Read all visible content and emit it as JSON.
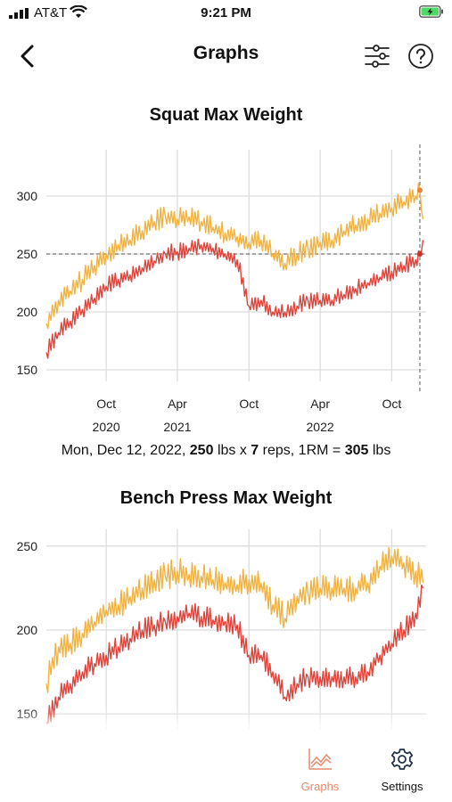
{
  "status_bar": {
    "carrier": "AT&T",
    "time": "9:21 PM"
  },
  "header": {
    "title": "Graphs",
    "back_icon": "chevron-left-icon",
    "filter_icon": "sliders-icon",
    "help_icon": "question-circle-icon"
  },
  "colors": {
    "orange": "#f2b240",
    "red": "#e0433a",
    "active_tab": "#e88a6b",
    "grid": "#dcdcdc"
  },
  "caption": {
    "date": "Mon, Dec 12, 2022,",
    "weight": "250",
    "lbs_x": "lbs x",
    "reps": "7",
    "reps_label": "reps, 1RM =",
    "one_rm": "305",
    "unit": "lbs"
  },
  "chart_data": [
    {
      "type": "line",
      "title": "Squat Max Weight",
      "x_tick_labels": [
        [
          "Oct",
          "2020"
        ],
        [
          "Apr",
          "2021"
        ],
        [
          "Oct",
          ""
        ],
        [
          "Apr",
          "2022"
        ],
        [
          "Oct",
          ""
        ]
      ],
      "x_ticks": [
        "2020-10-01",
        "2021-04-01",
        "2021-10-01",
        "2022-04-01",
        "2022-10-01"
      ],
      "xlim": [
        "2020-05-01",
        "2022-12-28"
      ],
      "ylim": [
        140,
        340
      ],
      "y_ticks": [
        150,
        200,
        250,
        300
      ],
      "grid": true,
      "selected": {
        "date": "2022-12-12",
        "weight": 250,
        "one_rm": 305
      },
      "series": [
        {
          "color": "#f2b240",
          "points": [
            [
              "2020-05-01",
              190
            ],
            [
              "2020-06-01",
              210
            ],
            [
              "2020-07-01",
              218
            ],
            [
              "2020-08-01",
              228
            ],
            [
              "2020-09-01",
              240
            ],
            [
              "2020-10-01",
              250
            ],
            [
              "2020-11-01",
              258
            ],
            [
              "2020-12-01",
              262
            ],
            [
              "2021-01-01",
              270
            ],
            [
              "2021-02-01",
              278
            ],
            [
              "2021-03-01",
              283
            ],
            [
              "2021-04-01",
              280
            ],
            [
              "2021-05-01",
              282
            ],
            [
              "2021-06-01",
              278
            ],
            [
              "2021-07-01",
              273
            ],
            [
              "2021-08-01",
              268
            ],
            [
              "2021-09-01",
              265
            ],
            [
              "2021-10-01",
              260
            ],
            [
              "2021-11-01",
              262
            ],
            [
              "2021-12-01",
              250
            ],
            [
              "2022-01-01",
              242
            ],
            [
              "2022-02-01",
              250
            ],
            [
              "2022-03-01",
              255
            ],
            [
              "2022-04-01",
              260
            ],
            [
              "2022-05-01",
              262
            ],
            [
              "2022-06-01",
              270
            ],
            [
              "2022-07-01",
              275
            ],
            [
              "2022-08-01",
              280
            ],
            [
              "2022-09-01",
              285
            ],
            [
              "2022-10-01",
              290
            ],
            [
              "2022-11-01",
              295
            ],
            [
              "2022-12-01",
              300
            ],
            [
              "2022-12-12",
              305
            ],
            [
              "2022-12-20",
              280
            ]
          ]
        },
        {
          "color": "#e0433a",
          "points": [
            [
              "2020-05-01",
              165
            ],
            [
              "2020-06-01",
              182
            ],
            [
              "2020-07-01",
              192
            ],
            [
              "2020-08-01",
              202
            ],
            [
              "2020-09-01",
              212
            ],
            [
              "2020-10-01",
              222
            ],
            [
              "2020-11-01",
              228
            ],
            [
              "2020-12-01",
              232
            ],
            [
              "2021-01-01",
              238
            ],
            [
              "2021-02-01",
              244
            ],
            [
              "2021-03-01",
              250
            ],
            [
              "2021-04-01",
              252
            ],
            [
              "2021-05-01",
              255
            ],
            [
              "2021-06-01",
              258
            ],
            [
              "2021-07-01",
              255
            ],
            [
              "2021-08-01",
              250
            ],
            [
              "2021-09-01",
              245
            ],
            [
              "2021-10-01",
              205
            ],
            [
              "2021-11-01",
              210
            ],
            [
              "2021-12-01",
              200
            ],
            [
              "2022-01-01",
              200
            ],
            [
              "2022-02-01",
              205
            ],
            [
              "2022-03-01",
              210
            ],
            [
              "2022-04-01",
              210
            ],
            [
              "2022-05-01",
              210
            ],
            [
              "2022-06-01",
              215
            ],
            [
              "2022-07-01",
              220
            ],
            [
              "2022-08-01",
              225
            ],
            [
              "2022-09-01",
              230
            ],
            [
              "2022-10-01",
              235
            ],
            [
              "2022-11-01",
              240
            ],
            [
              "2022-12-01",
              245
            ],
            [
              "2022-12-12",
              250
            ],
            [
              "2022-12-20",
              262
            ]
          ]
        }
      ]
    },
    {
      "type": "line",
      "title": "Bench Press Max Weight",
      "x_ticks": [
        "2020-10-01",
        "2021-04-01",
        "2021-10-01",
        "2022-04-01",
        "2022-10-01"
      ],
      "xlim": [
        "2020-05-01",
        "2022-12-28"
      ],
      "ylim": [
        140,
        260
      ],
      "y_ticks": [
        150,
        200,
        250
      ],
      "grid": true,
      "series": [
        {
          "color": "#f2b240",
          "points": [
            [
              "2020-05-01",
              168
            ],
            [
              "2020-06-01",
              190
            ],
            [
              "2020-07-01",
              192
            ],
            [
              "2020-08-01",
              198
            ],
            [
              "2020-09-01",
              205
            ],
            [
              "2020-10-01",
              212
            ],
            [
              "2020-11-01",
              215
            ],
            [
              "2020-12-01",
              220
            ],
            [
              "2021-01-01",
              225
            ],
            [
              "2021-02-01",
              230
            ],
            [
              "2021-03-01",
              232
            ],
            [
              "2021-04-01",
              235
            ],
            [
              "2021-05-01",
              233
            ],
            [
              "2021-06-01",
              232
            ],
            [
              "2021-07-01",
              230
            ],
            [
              "2021-08-01",
              228
            ],
            [
              "2021-09-01",
              227
            ],
            [
              "2021-10-01",
              230
            ],
            [
              "2021-11-01",
              228
            ],
            [
              "2021-12-01",
              215
            ],
            [
              "2022-01-01",
              207
            ],
            [
              "2022-02-01",
              220
            ],
            [
              "2022-03-01",
              222
            ],
            [
              "2022-04-01",
              225
            ],
            [
              "2022-05-01",
              225
            ],
            [
              "2022-06-01",
              225
            ],
            [
              "2022-07-01",
              225
            ],
            [
              "2022-08-01",
              228
            ],
            [
              "2022-09-01",
              238
            ],
            [
              "2022-10-01",
              244
            ],
            [
              "2022-11-01",
              240
            ],
            [
              "2022-12-01",
              235
            ],
            [
              "2022-12-20",
              228
            ]
          ]
        },
        {
          "color": "#e0433a",
          "points": [
            [
              "2020-05-01",
              145
            ],
            [
              "2020-06-01",
              160
            ],
            [
              "2020-07-01",
              168
            ],
            [
              "2020-08-01",
              175
            ],
            [
              "2020-09-01",
              180
            ],
            [
              "2020-10-01",
              185
            ],
            [
              "2020-11-01",
              190
            ],
            [
              "2020-12-01",
              195
            ],
            [
              "2021-01-01",
              200
            ],
            [
              "2021-02-01",
              203
            ],
            [
              "2021-03-01",
              205
            ],
            [
              "2021-04-01",
              208
            ],
            [
              "2021-05-01",
              210
            ],
            [
              "2021-06-01",
              208
            ],
            [
              "2021-07-01",
              206
            ],
            [
              "2021-08-01",
              205
            ],
            [
              "2021-09-01",
              203
            ],
            [
              "2021-10-01",
              185
            ],
            [
              "2021-11-01",
              185
            ],
            [
              "2021-12-01",
              175
            ],
            [
              "2022-01-01",
              160
            ],
            [
              "2022-02-01",
              168
            ],
            [
              "2022-03-01",
              172
            ],
            [
              "2022-04-01",
              172
            ],
            [
              "2022-05-01",
              172
            ],
            [
              "2022-06-01",
              172
            ],
            [
              "2022-07-01",
              172
            ],
            [
              "2022-08-01",
              175
            ],
            [
              "2022-09-01",
              185
            ],
            [
              "2022-10-01",
              192
            ],
            [
              "2022-11-01",
              200
            ],
            [
              "2022-12-01",
              210
            ],
            [
              "2022-12-20",
              225
            ]
          ]
        }
      ]
    }
  ],
  "tabs": [
    {
      "label": "Graphs",
      "icon": "line-chart-icon",
      "active": true
    },
    {
      "label": "Settings",
      "icon": "gear-icon",
      "active": false
    }
  ]
}
